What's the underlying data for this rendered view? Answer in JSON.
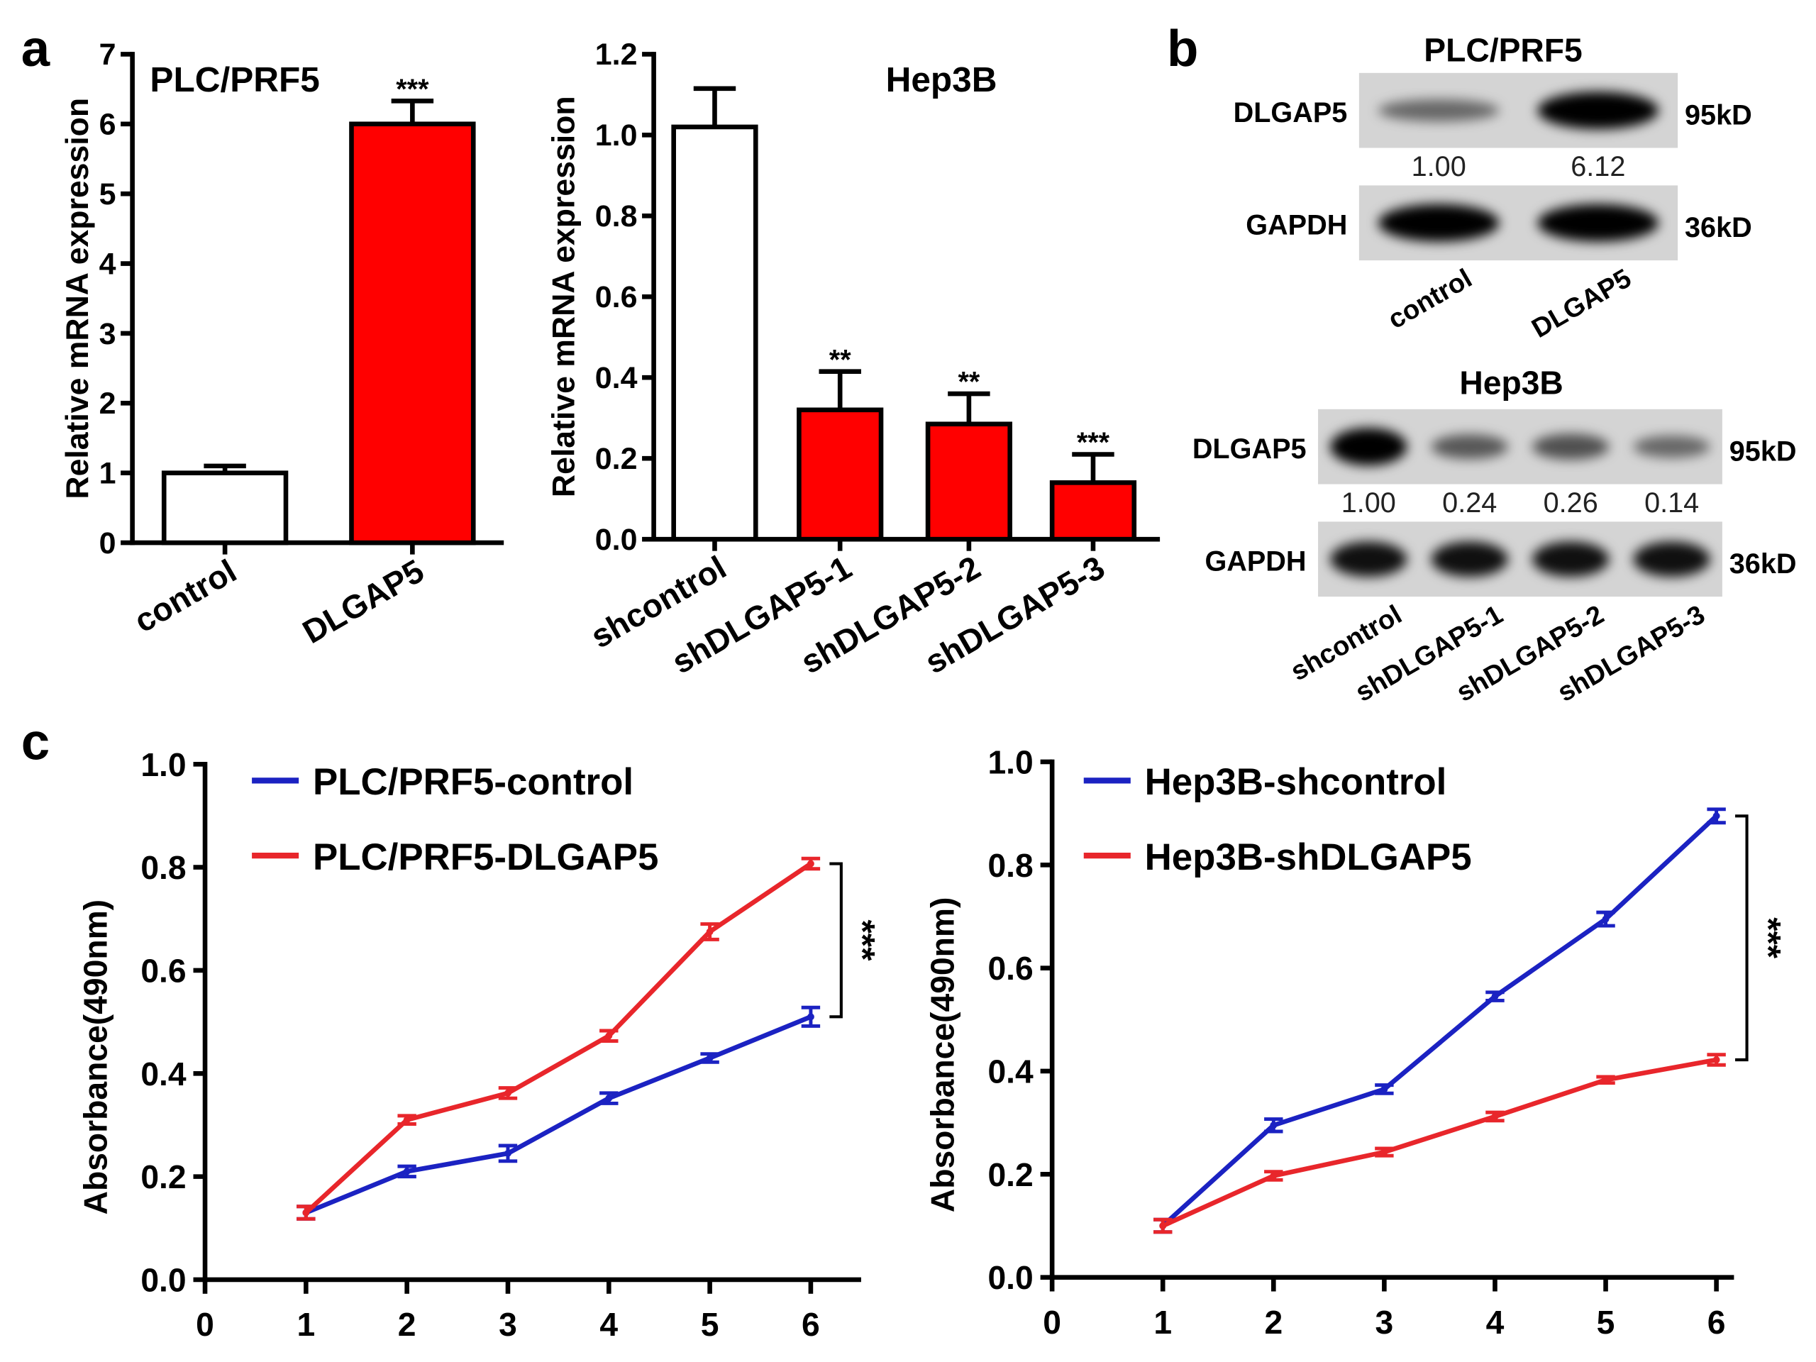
{
  "panel_labels": [
    "a",
    "b",
    "c"
  ],
  "colors": {
    "red": "#ff0000",
    "line_red": "#e8262b",
    "line_blue": "#1b22c2",
    "white": "#ffffff"
  },
  "chart_data": [
    {
      "type": "bar",
      "title": "PLC/PRF5",
      "ylabel": "Relative mRNA expression",
      "ylim": [
        0,
        7
      ],
      "yticks": [
        "0",
        "1",
        "2",
        "3",
        "4",
        "5",
        "6",
        "7"
      ],
      "categories": [
        "control",
        "DLGAP5"
      ],
      "values": [
        1.0,
        6.0
      ],
      "error_upper": [
        1.1,
        6.33
      ],
      "bar_colors": [
        "#ffffff",
        "#ff0000"
      ],
      "significance": [
        "",
        "***"
      ]
    },
    {
      "type": "bar",
      "title": "Hep3B",
      "ylabel": "Relative mRNA expression",
      "ylim": [
        0,
        1.2
      ],
      "yticks": [
        "0.0",
        "0.2",
        "0.4",
        "0.6",
        "0.8",
        "1.0",
        "1.2"
      ],
      "categories": [
        "shcontrol",
        "shDLGAP5-1",
        "shDLGAP5-2",
        "shDLGAP5-3"
      ],
      "values": [
        1.02,
        0.32,
        0.285,
        0.14
      ],
      "error_upper": [
        1.115,
        0.415,
        0.36,
        0.21
      ],
      "bar_colors": [
        "#ffffff",
        "#ff0000",
        "#ff0000",
        "#ff0000"
      ],
      "significance": [
        "",
        "**",
        "**",
        "***"
      ]
    },
    {
      "type": "line",
      "ylabel": "Absorbance(490nm)",
      "xlim": [
        0,
        6
      ],
      "ylim": [
        0,
        1.0
      ],
      "xticks": [
        "0",
        "1",
        "2",
        "3",
        "4",
        "5",
        "6"
      ],
      "yticks": [
        "0.0",
        "0.2",
        "0.4",
        "0.6",
        "0.8",
        "1.0"
      ],
      "legend_position": "top-left",
      "x": [
        1,
        2,
        3,
        4,
        5,
        6
      ],
      "series": [
        {
          "name": "PLC/PRF5-control",
          "color": "#1b22c2",
          "values": [
            0.13,
            0.21,
            0.245,
            0.352,
            0.43,
            0.51
          ],
          "error": [
            0.012,
            0.01,
            0.015,
            0.01,
            0.008,
            0.018
          ]
        },
        {
          "name": "PLC/PRF5-DLGAP5",
          "color": "#e8262b",
          "values": [
            0.13,
            0.31,
            0.362,
            0.473,
            0.675,
            0.807
          ],
          "error": [
            0.012,
            0.008,
            0.01,
            0.01,
            0.015,
            0.01
          ]
        }
      ],
      "significance": "***"
    },
    {
      "type": "line",
      "ylabel": "Absorbance(490nm)",
      "xlim": [
        0,
        6
      ],
      "ylim": [
        0,
        1.0
      ],
      "xticks": [
        "0",
        "1",
        "2",
        "3",
        "4",
        "5",
        "6"
      ],
      "yticks": [
        "0.0",
        "0.2",
        "0.4",
        "0.6",
        "0.8",
        "1.0"
      ],
      "legend_position": "top-left",
      "x": [
        1,
        2,
        3,
        4,
        5,
        6
      ],
      "series": [
        {
          "name": "Hep3B-shcontrol",
          "color": "#1b22c2",
          "values": [
            0.1,
            0.295,
            0.365,
            0.545,
            0.695,
            0.895
          ],
          "error": [
            0.012,
            0.012,
            0.008,
            0.008,
            0.013,
            0.013
          ]
        },
        {
          "name": "Hep3B-shDLGAP5",
          "color": "#e8262b",
          "values": [
            0.1,
            0.197,
            0.243,
            0.312,
            0.383,
            0.422
          ],
          "error": [
            0.012,
            0.008,
            0.007,
            0.008,
            0.006,
            0.01
          ]
        }
      ],
      "significance": "***"
    }
  ],
  "blots": [
    {
      "title": "PLC/PRF5",
      "rows": [
        {
          "label": "DLGAP5",
          "size": "95kD",
          "intensity": [
            0.35,
            1.0
          ]
        },
        {
          "label": "GAPDH",
          "size": "36kD",
          "intensity": [
            1.0,
            1.0
          ]
        }
      ],
      "quant": [
        "1.00",
        "6.12"
      ],
      "lanes": [
        "control",
        "DLGAP5"
      ]
    },
    {
      "title": "Hep3B",
      "rows": [
        {
          "label": "DLGAP5",
          "size": "95kD",
          "intensity": [
            1.0,
            0.45,
            0.5,
            0.35
          ]
        },
        {
          "label": "GAPDH",
          "size": "36kD",
          "intensity": [
            0.9,
            0.9,
            0.9,
            0.9
          ]
        }
      ],
      "quant": [
        "1.00",
        "0.24",
        "0.26",
        "0.14"
      ],
      "lanes": [
        "shcontrol",
        "shDLGAP5-1",
        "shDLGAP5-2",
        "shDLGAP5-3"
      ]
    }
  ]
}
